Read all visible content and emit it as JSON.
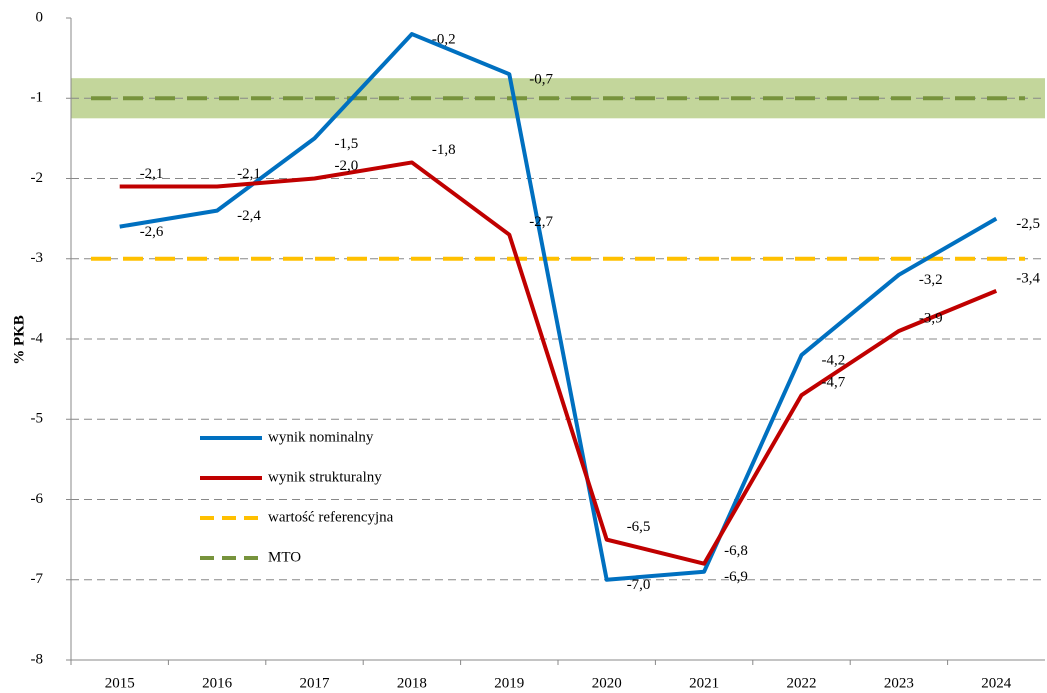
{
  "chart_data": {
    "type": "line",
    "y_label": "% PKB",
    "categories": [
      "2015",
      "2016",
      "2017",
      "2018",
      "2019",
      "2020",
      "2021",
      "2022",
      "2023",
      "2024"
    ],
    "series": [
      {
        "name": "wynik nominalny",
        "color": "#0070c0",
        "values": [
          -2.6,
          -2.4,
          -1.5,
          -0.2,
          -0.7,
          -7.0,
          -6.9,
          -4.2,
          -3.2,
          -2.5
        ],
        "value_labels": [
          "-2,6",
          "-2,4",
          "-1,5",
          "-0,2",
          "-0,7",
          "-7,0",
          "-6,9",
          "-4,2",
          "-3,2",
          "-2,5"
        ]
      },
      {
        "name": "wynik strukturalny",
        "color": "#c00000",
        "values": [
          -2.1,
          -2.1,
          -2.0,
          -1.8,
          -2.7,
          -6.5,
          -6.8,
          -4.7,
          -3.9,
          -3.4
        ],
        "value_labels": [
          "-2,1",
          "-2,1",
          "-2,0",
          "-1,8",
          "-2,7",
          "-6,5",
          "-6,8",
          "-4,7",
          "-3,9",
          "-3,4"
        ]
      }
    ],
    "reference_lines": [
      {
        "name": "wartość referencyjna",
        "color": "#ffc000",
        "value": -3
      },
      {
        "name": "MTO",
        "color": "#77933c",
        "value": -1,
        "band": [
          -0.75,
          -1.25
        ],
        "band_color": "#9bbb59"
      }
    ],
    "ylim": [
      -8,
      0
    ],
    "yticks": [
      0,
      -1,
      -2,
      -3,
      -4,
      -5,
      -6,
      -7,
      -8
    ],
    "grid": true
  }
}
